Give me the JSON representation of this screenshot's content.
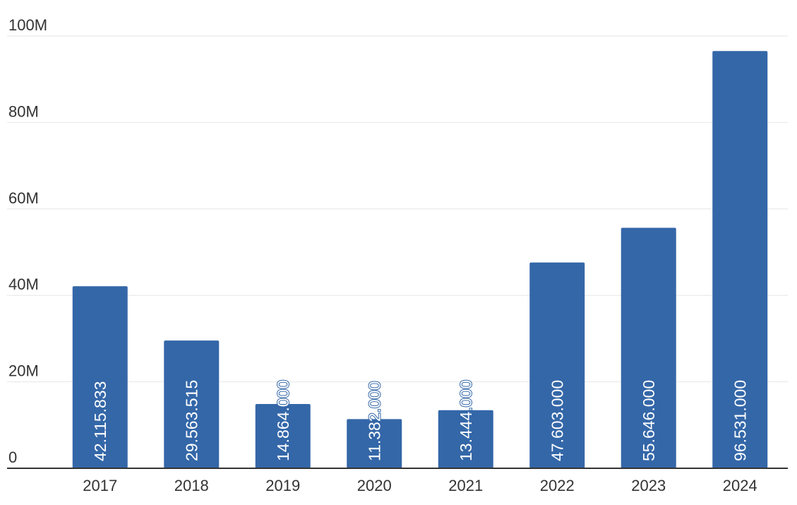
{
  "chart_data": {
    "type": "bar",
    "categories": [
      "2017",
      "2018",
      "2019",
      "2020",
      "2021",
      "2022",
      "2023",
      "2024"
    ],
    "values": [
      42115833,
      29563515,
      14864000,
      11382000,
      13444000,
      47603000,
      55646000,
      96531000
    ],
    "value_labels": [
      "42.115.833",
      "29.563.515",
      "14.864.000",
      "11.382.000",
      "13.444.000",
      "47.603.000",
      "55.646.000",
      "96.531.000"
    ],
    "color": "#3467a8",
    "ylim": [
      0,
      100000000
    ],
    "yticks": [
      0,
      {
        "value": 20000000,
        "label": "20M"
      },
      {
        "value": 40000000,
        "label": "40M"
      },
      {
        "value": 60000000,
        "label": "60M"
      },
      {
        "value": 80000000,
        "label": "80M"
      },
      {
        "value": 100000000,
        "label": "100M"
      }
    ],
    "grid": true
  }
}
